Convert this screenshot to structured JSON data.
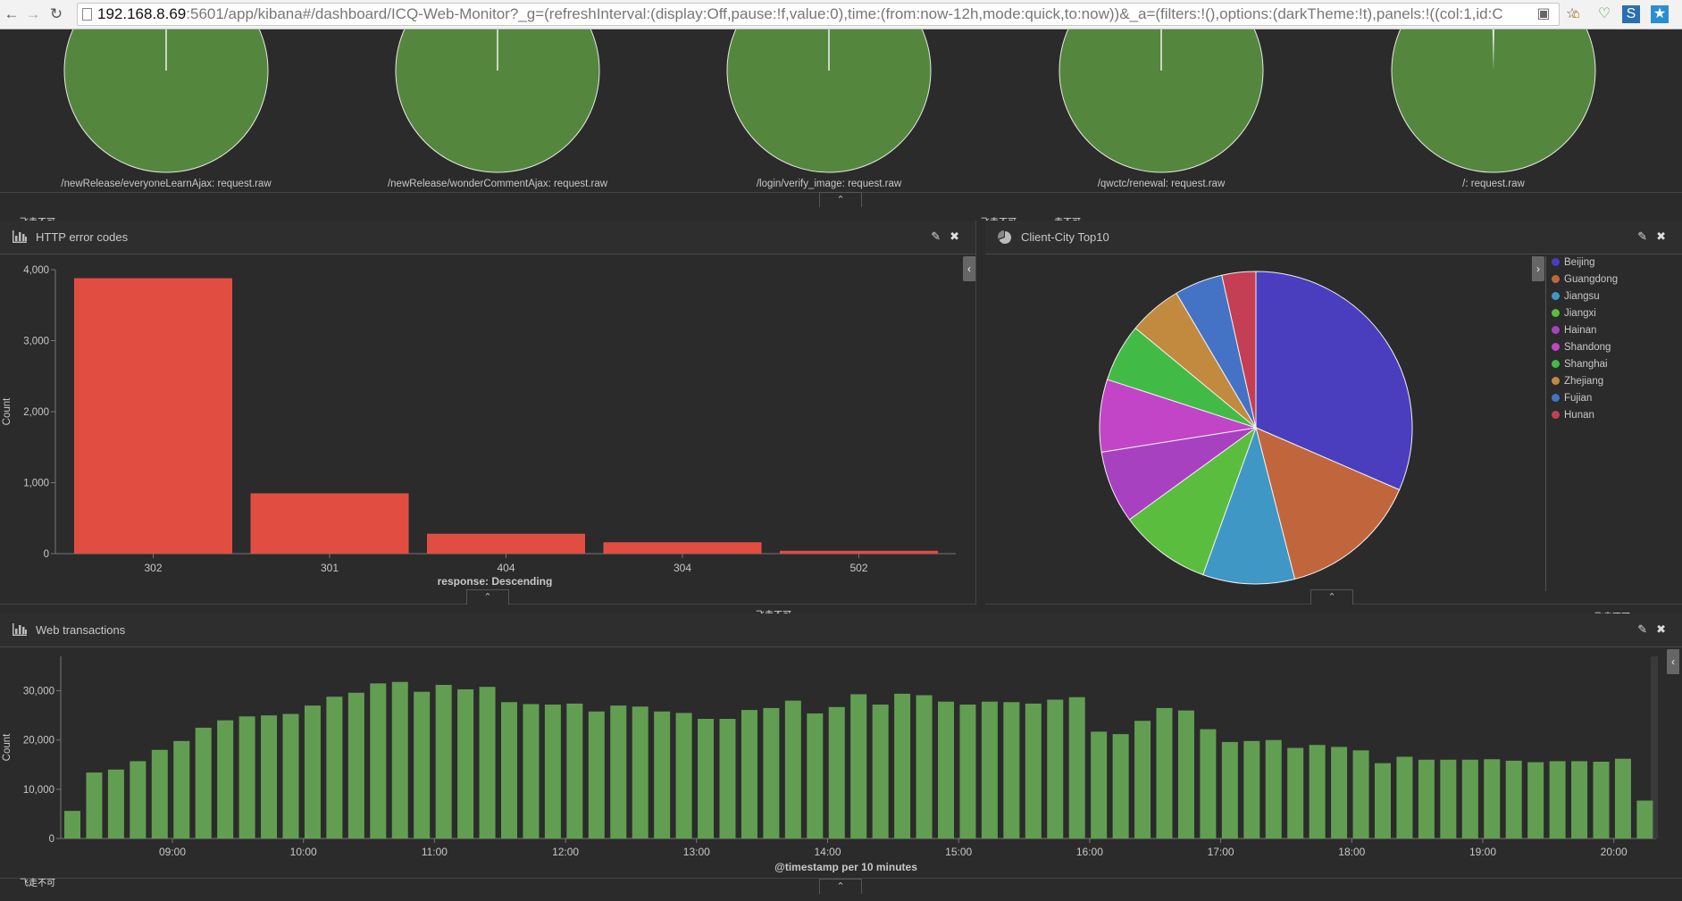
{
  "browser": {
    "url_host": "192.168.8.69",
    "url_rest": ":5601/app/kibana#/dashboard/ICQ-Web-Monitor?_g=(refreshInterval:(display:Off,pause:!f,value:0),time:(from:now-12h,mode:quick,to:now))&_a=(filters:!(),options:(darkTheme:!t),panels:!((col:1,id:C"
  },
  "overlay_text": "飞走不可",
  "overlay_text_2": "走不可",
  "top_pies": {
    "labels": [
      "/newRelease/everyoneLearnAjax: request.raw",
      "/newRelease/wonderCommentAjax: request.raw",
      "/login/verify_image: request.raw",
      "/qwctc/renewal: request.raw",
      "/: request.raw"
    ],
    "color": "#54873d"
  },
  "http_panel": {
    "title": "HTTP error codes",
    "icon": "bar-chart-icon"
  },
  "city_panel": {
    "title": "Client-City Top10",
    "icon": "pie-chart-icon"
  },
  "web_panel": {
    "title": "Web transactions",
    "icon": "bar-chart-icon"
  },
  "chart_data": [
    {
      "type": "pie",
      "labels": [
        "/newRelease/everyoneLearnAjax: request.raw",
        "/newRelease/wonderCommentAjax: request.raw",
        "/login/verify_image: request.raw",
        "/qwctc/renewal: request.raw",
        "/: request.raw"
      ]
    },
    {
      "type": "bar",
      "title": "HTTP error codes",
      "categories": [
        "302",
        "301",
        "404",
        "304",
        "502"
      ],
      "values": [
        3880,
        850,
        280,
        160,
        40
      ],
      "xlabel": "response: Descending",
      "ylabel": "Count",
      "ylim": [
        0,
        4000
      ],
      "yticks": [
        0,
        1000,
        2000,
        3000,
        4000
      ],
      "ytick_labels": [
        "0",
        "1,000",
        "2,000",
        "3,000",
        "4,000"
      ],
      "color": "#e24d42"
    },
    {
      "type": "pie",
      "title": "Client-City Top10",
      "legend": "right",
      "labels": [
        "Beijing",
        "Guangdong",
        "Jiangsu",
        "Jiangxi",
        "Hainan",
        "Shandong",
        "Shanghai",
        "Zhejiang",
        "Fujian",
        "Hunan"
      ],
      "values": [
        31.5,
        14.5,
        9.5,
        9.5,
        7.5,
        7.5,
        6,
        5.5,
        5,
        3.5
      ],
      "colors": [
        "#4a3ebf",
        "#c1663c",
        "#3f97c5",
        "#5bbd3e",
        "#a841c0",
        "#c244c7",
        "#42bb46",
        "#c28a3f",
        "#4473c5",
        "#c43e54"
      ]
    },
    {
      "type": "bar",
      "title": "Web transactions",
      "xlabel": "@timestamp per 10 minutes",
      "ylabel": "Count",
      "ylim": [
        0,
        37000
      ],
      "yticks": [
        0,
        10000,
        20000,
        30000
      ],
      "ytick_labels": [
        "0",
        "10,000",
        "20,000",
        "30,000"
      ],
      "xtick_labels": [
        "09:00",
        "10:00",
        "11:00",
        "12:00",
        "13:00",
        "14:00",
        "15:00",
        "16:00",
        "17:00",
        "18:00",
        "19:00",
        "20:00"
      ],
      "values": [
        5600,
        13400,
        14000,
        15700,
        18000,
        19800,
        22500,
        24000,
        24800,
        25000,
        25300,
        27000,
        28800,
        29600,
        31500,
        31800,
        29800,
        31200,
        30300,
        30800,
        27700,
        27300,
        27200,
        27400,
        25800,
        27000,
        26800,
        25800,
        25500,
        24300,
        24300,
        26100,
        26500,
        28000,
        25400,
        26700,
        29300,
        27200,
        29400,
        29100,
        27800,
        27200,
        27800,
        27700,
        27400,
        28200,
        28700,
        21700,
        21200,
        23900,
        26500,
        26000,
        22200,
        19600,
        19800,
        20000,
        18400,
        19000,
        18600,
        17900,
        15300,
        16600,
        16000,
        16000,
        16000,
        16100,
        15800,
        15500,
        15700,
        15700,
        15600,
        16200,
        7700
      ],
      "color": "#629e51"
    }
  ]
}
